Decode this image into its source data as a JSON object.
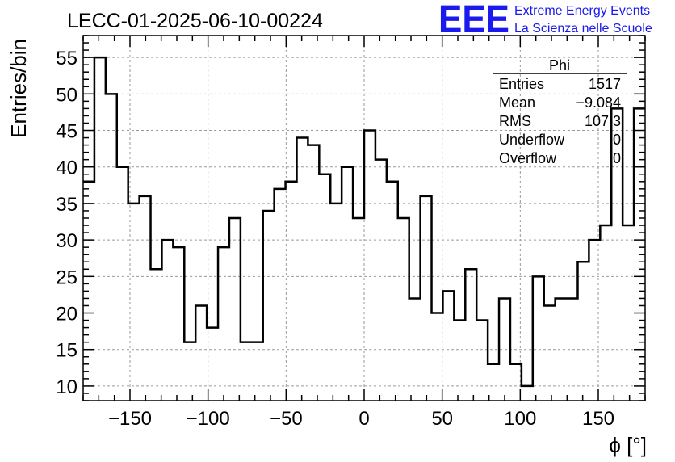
{
  "chart_data": {
    "type": "histogram",
    "title": "LECC-01-2025-06-10-00224",
    "xlabel": "ϕ [°]",
    "ylabel": "Entries/bin",
    "xlim": [
      -180,
      180
    ],
    "ylim": [
      8,
      58
    ],
    "grid": true,
    "x_ticks": [
      -150,
      -100,
      -50,
      0,
      50,
      100,
      150
    ],
    "x_tick_labels": [
      "−150",
      "−100",
      "−50",
      "0",
      "50",
      "100",
      "150"
    ],
    "y_ticks": [
      10,
      15,
      20,
      25,
      30,
      35,
      40,
      45,
      50,
      55
    ],
    "y_tick_labels": [
      "10",
      "15",
      "20",
      "25",
      "30",
      "35",
      "40",
      "45",
      "50",
      "55"
    ],
    "bin_width": 7.2,
    "bin_start": -180,
    "values": [
      38,
      55,
      50,
      40,
      35,
      36,
      26,
      30,
      29,
      16,
      21,
      18,
      29,
      33,
      16,
      16,
      34,
      37,
      38,
      44,
      43,
      39,
      35,
      40,
      33,
      45,
      41,
      38,
      33,
      22,
      36,
      20,
      23,
      19,
      26,
      19,
      13,
      22,
      13,
      10,
      25,
      21,
      22,
      22,
      27,
      30,
      32,
      48,
      32,
      48
    ],
    "line_color": "#000000",
    "stats_box": {
      "title": "Phi",
      "rows": [
        {
          "label": "Entries",
          "value": "1517"
        },
        {
          "label": "Mean",
          "value": "−9.084"
        },
        {
          "label": "RMS",
          "value": "107.3"
        },
        {
          "label": "Underflow",
          "value": "0"
        },
        {
          "label": "Overflow",
          "value": "0"
        }
      ]
    }
  },
  "logo": {
    "text": "EEE",
    "line1": "Extreme Energy Events",
    "line2": "La Scienza nelle Scuole",
    "color": "#1a1aee"
  }
}
